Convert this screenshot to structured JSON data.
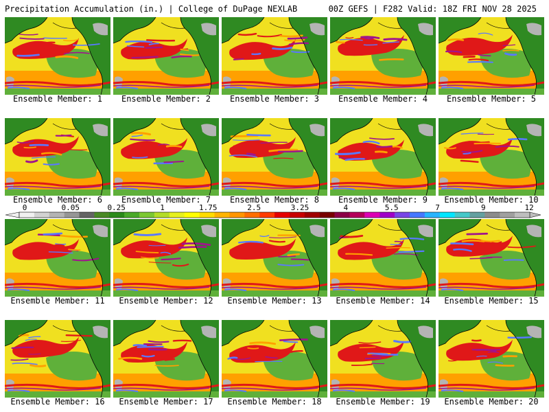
{
  "header": {
    "left": "Precipitation Accumulation (in.) | College of DuPage NEXLAB",
    "right": "00Z GEFS | F282 Valid: 18Z FRI NOV 28 2025"
  },
  "members": [
    {
      "label": "Ensemble Member: 1"
    },
    {
      "label": "Ensemble Member: 2"
    },
    {
      "label": "Ensemble Member: 3"
    },
    {
      "label": "Ensemble Member: 4"
    },
    {
      "label": "Ensemble Member: 5"
    },
    {
      "label": "Ensemble Member: 6"
    },
    {
      "label": "Ensemble Member: 7"
    },
    {
      "label": "Ensemble Member: 8"
    },
    {
      "label": "Ensemble Member: 9"
    },
    {
      "label": "Ensemble Member: 10"
    },
    {
      "label": "Ensemble Member: 11"
    },
    {
      "label": "Ensemble Member: 12"
    },
    {
      "label": "Ensemble Member: 13"
    },
    {
      "label": "Ensemble Member: 14"
    },
    {
      "label": "Ensemble Member: 15"
    },
    {
      "label": "Ensemble Member: 16"
    },
    {
      "label": "Ensemble Member: 17"
    },
    {
      "label": "Ensemble Member: 18"
    },
    {
      "label": "Ensemble Member: 19"
    },
    {
      "label": "Ensemble Member: 20"
    }
  ],
  "legend": {
    "tick_labels": [
      "0",
      "0.05",
      "0.25",
      "1",
      "1.75",
      "2.5",
      "3.25",
      "4",
      "5.5",
      "7",
      "9",
      "12"
    ],
    "colors": [
      "#f0f0f0",
      "#d2d2d2",
      "#b4b4b4",
      "#969696",
      "#646464",
      "#4a8a26",
      "#2a8a1a",
      "#4aaa2a",
      "#7cc832",
      "#b4dc28",
      "#e6f01e",
      "#ffff00",
      "#ffdc00",
      "#ffb400",
      "#ff9600",
      "#ff6e00",
      "#ff3c00",
      "#e60000",
      "#c80000",
      "#a00000",
      "#780000",
      "#8c0046",
      "#b4005a",
      "#dc00b4",
      "#a000c8",
      "#7846e6",
      "#4678ff",
      "#28b4ff",
      "#00e6ff",
      "#46c8c8",
      "#64a0a0",
      "#8c8c8c",
      "#a0a0a0",
      "#bebebe"
    ]
  },
  "map_colors": {
    "land": "#2f8a22",
    "land_light": "#5fb03a",
    "snow": "#b4b4b4",
    "ocean_light": "#f0e020",
    "ocean_mid": "#ffa000",
    "ocean_heavy": "#e01818",
    "ocean_extreme": "#a0148c",
    "ocean_max": "#5a78ff",
    "coast": "#000000"
  }
}
